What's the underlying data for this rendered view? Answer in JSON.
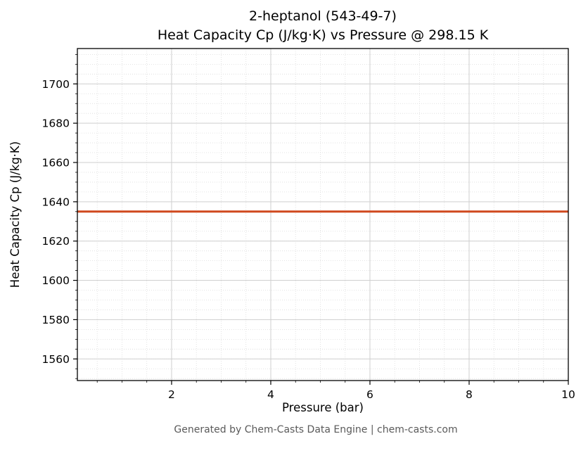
{
  "chart_data": {
    "type": "line",
    "title_line1": "2-heptanol (543-49-7)",
    "title_line2": "Heat Capacity Cp (J/kg·K) vs Pressure @ 298.15 K",
    "xlabel": "Pressure (bar)",
    "ylabel": "Heat Capacity Cp (J/kg·K)",
    "xlim": [
      0.1,
      10
    ],
    "ylim": [
      1549,
      1718
    ],
    "x_ticks": [
      2,
      4,
      6,
      8,
      10
    ],
    "y_ticks": [
      1560,
      1580,
      1600,
      1620,
      1640,
      1660,
      1680,
      1700
    ],
    "x_minor_step": 0.5,
    "y_minor_step": 5,
    "grid": true,
    "legend": "none",
    "series": [
      {
        "name": "Heat Capacity Cp",
        "x": [
          0.1,
          10
        ],
        "y": [
          1635,
          1635
        ],
        "color": "#d0491e",
        "width": 3
      }
    ]
  },
  "footer": "Generated by Chem-Casts Data Engine | chem-casts.com",
  "colors": {
    "line": "#d0491e",
    "major_grid": "#cfcfcf",
    "minor_grid": "#dcdcdc",
    "axis_frame": "#000000",
    "footer_text": "#5a5a5a"
  }
}
